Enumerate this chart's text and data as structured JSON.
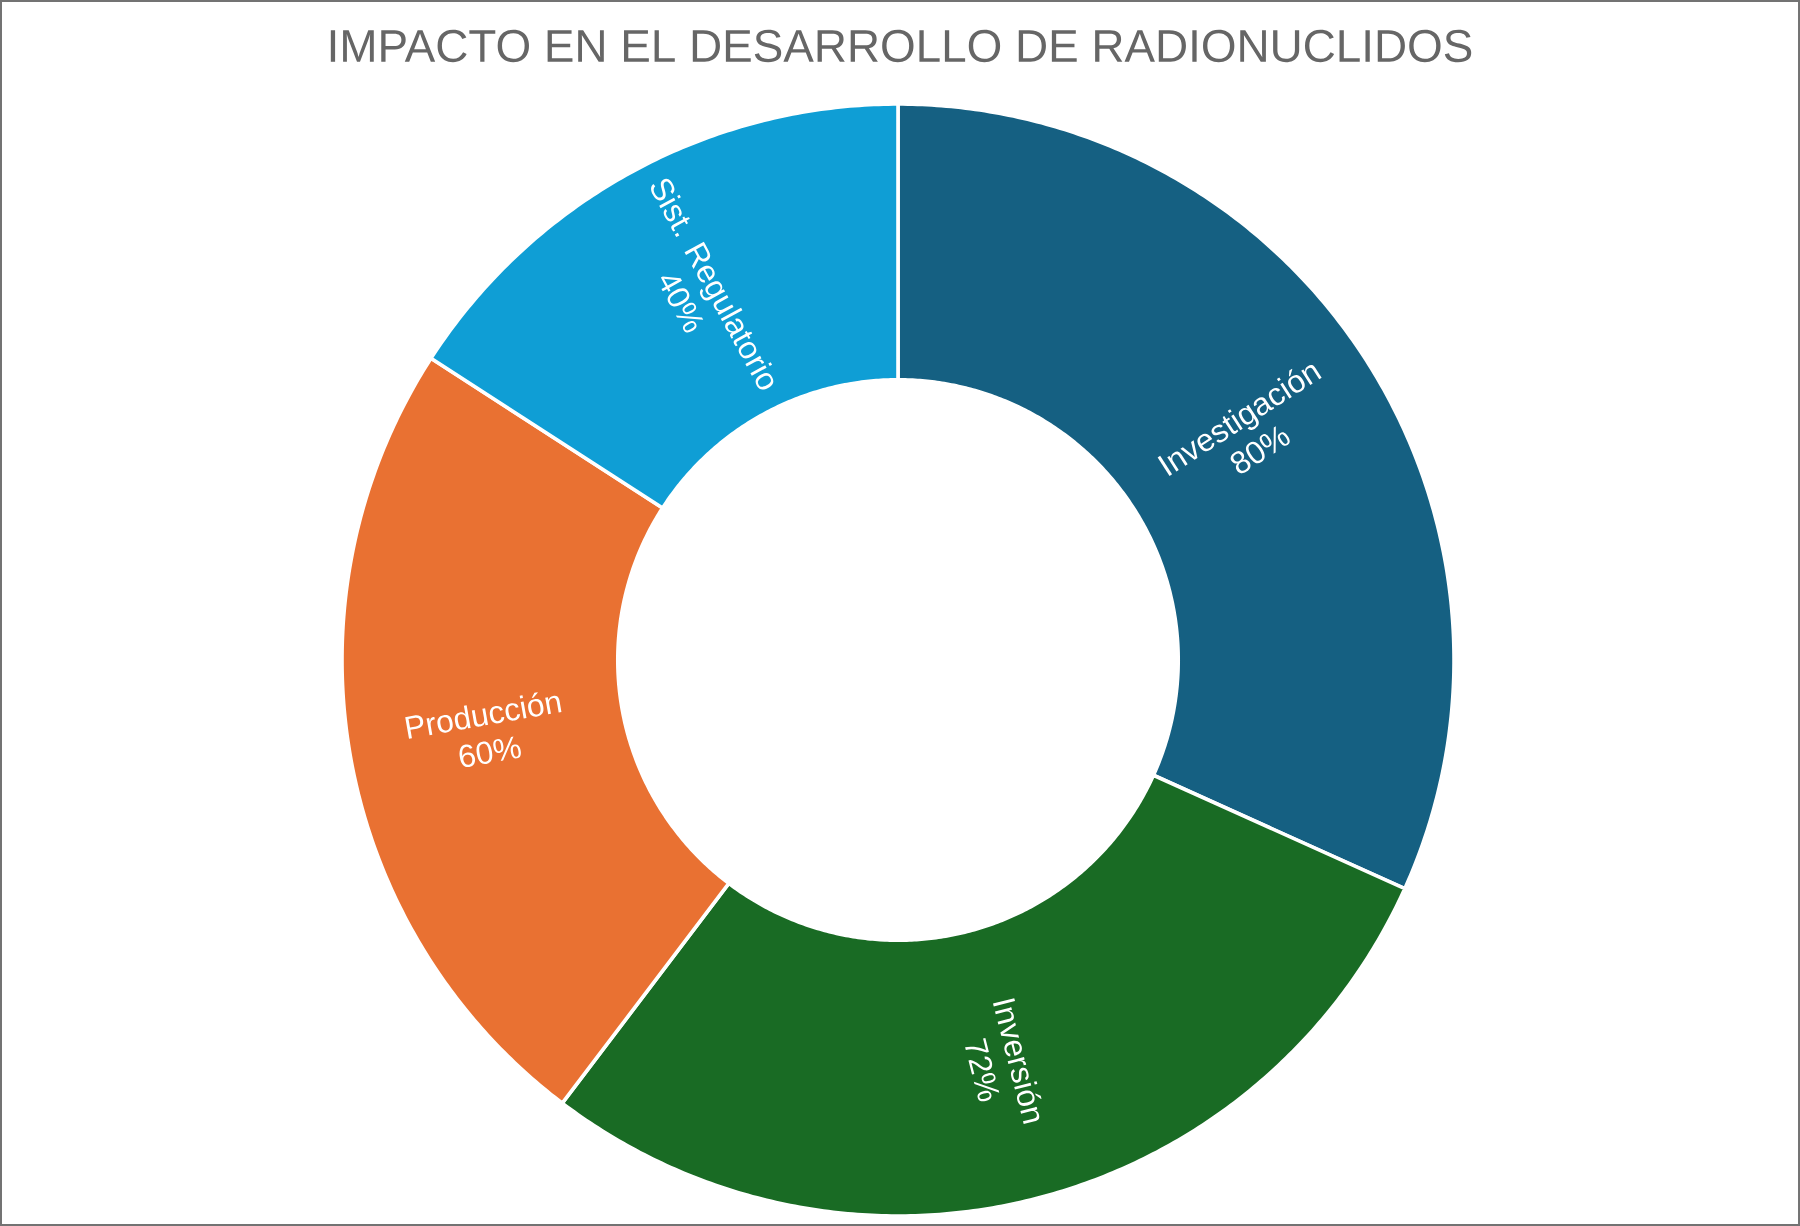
{
  "chart_data": {
    "type": "donut",
    "title": "IMPACTO EN EL DESARROLLO DE RADIONUCLIDOS",
    "categories": [
      "Investigación",
      "Inversión",
      "Producción",
      "Sist. Regulatorio"
    ],
    "values": [
      80,
      72,
      60,
      40
    ],
    "colors": [
      "#156082",
      "#196B24",
      "#E97132",
      "#0F9ED5"
    ],
    "value_labels": [
      "80%",
      "72%",
      "60%",
      "40%"
    ]
  }
}
